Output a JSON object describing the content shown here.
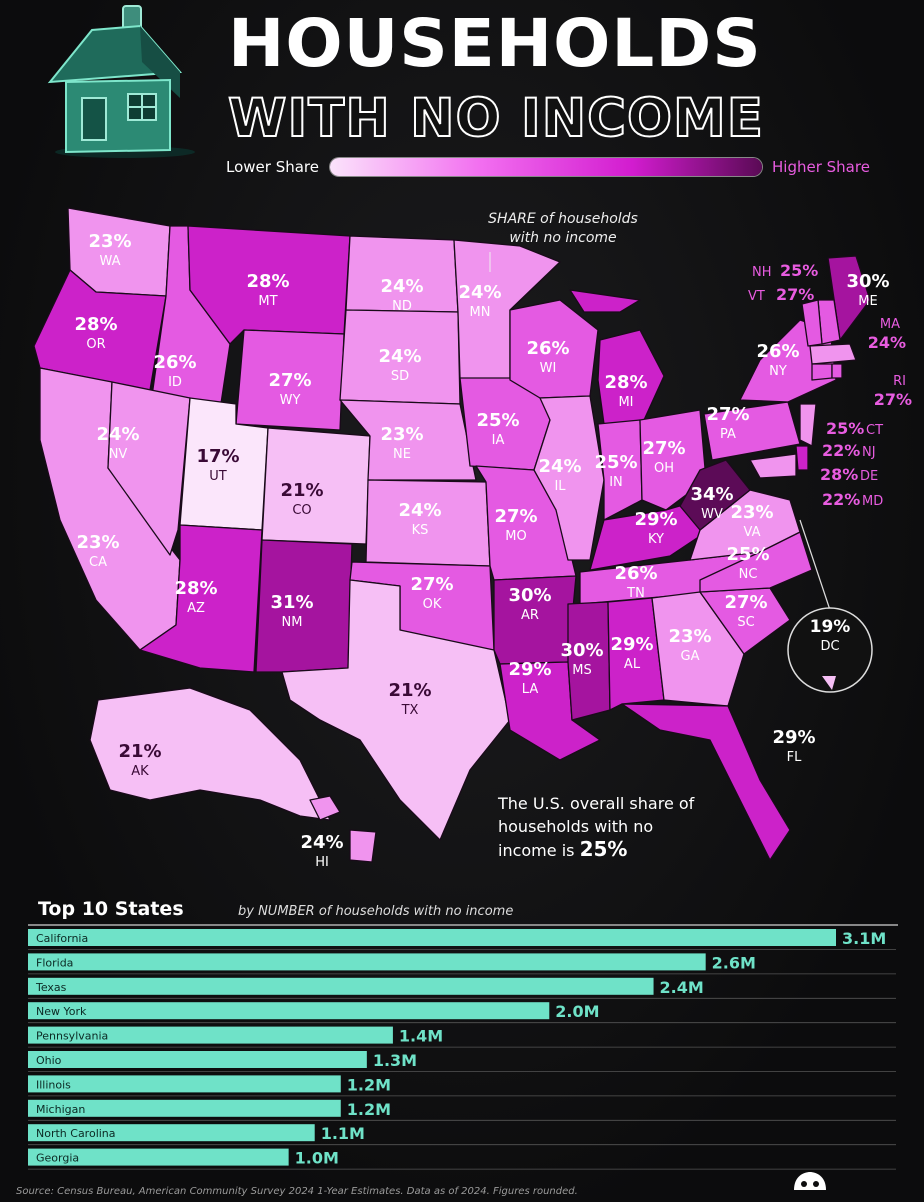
{
  "title": {
    "line1": "HOUSEHOLDS",
    "line2": "WITH NO INCOME"
  },
  "legend": {
    "low": "Lower Share",
    "high": "Higher Share"
  },
  "note": "SHARE of households with no income",
  "overall": {
    "text": "The U.S. overall share of households with no income is",
    "value": "25%"
  },
  "colors": {
    "c17": "#fbe6fb",
    "c19_21": "#f6bff5",
    "c22_24": "#f094ee",
    "c25_27": "#e45ae2",
    "c28_29": "#cc22c9",
    "c30_31": "#a5149f",
    "c34": "#5c0b57",
    "bar": "#6fe2c8"
  },
  "chart_data": [
    {
      "type": "map",
      "title": "HOUSEHOLDS WITH NO INCOME",
      "states": [
        {
          "abbr": "WA",
          "pct": "23%",
          "value": 23
        },
        {
          "abbr": "OR",
          "pct": "28%",
          "value": 28
        },
        {
          "abbr": "CA",
          "pct": "23%",
          "value": 23
        },
        {
          "abbr": "ID",
          "pct": "26%",
          "value": 26
        },
        {
          "abbr": "NV",
          "pct": "24%",
          "value": 24
        },
        {
          "abbr": "MT",
          "pct": "28%",
          "value": 28
        },
        {
          "abbr": "WY",
          "pct": "27%",
          "value": 27
        },
        {
          "abbr": "UT",
          "pct": "17%",
          "value": 17
        },
        {
          "abbr": "CO",
          "pct": "21%",
          "value": 21
        },
        {
          "abbr": "AZ",
          "pct": "28%",
          "value": 28
        },
        {
          "abbr": "NM",
          "pct": "31%",
          "value": 31
        },
        {
          "abbr": "ND",
          "pct": "24%",
          "value": 24
        },
        {
          "abbr": "SD",
          "pct": "24%",
          "value": 24
        },
        {
          "abbr": "NE",
          "pct": "23%",
          "value": 23
        },
        {
          "abbr": "KS",
          "pct": "24%",
          "value": 24
        },
        {
          "abbr": "OK",
          "pct": "27%",
          "value": 27
        },
        {
          "abbr": "TX",
          "pct": "21%",
          "value": 21
        },
        {
          "abbr": "MN",
          "pct": "24%",
          "value": 24
        },
        {
          "abbr": "IA",
          "pct": "25%",
          "value": 25
        },
        {
          "abbr": "MO",
          "pct": "27%",
          "value": 27
        },
        {
          "abbr": "AR",
          "pct": "30%",
          "value": 30
        },
        {
          "abbr": "LA",
          "pct": "29%",
          "value": 29
        },
        {
          "abbr": "WI",
          "pct": "26%",
          "value": 26
        },
        {
          "abbr": "IL",
          "pct": "24%",
          "value": 24
        },
        {
          "abbr": "MI",
          "pct": "28%",
          "value": 28
        },
        {
          "abbr": "IN",
          "pct": "25%",
          "value": 25
        },
        {
          "abbr": "OH",
          "pct": "27%",
          "value": 27
        },
        {
          "abbr": "KY",
          "pct": "29%",
          "value": 29
        },
        {
          "abbr": "TN",
          "pct": "26%",
          "value": 26
        },
        {
          "abbr": "MS",
          "pct": "30%",
          "value": 30
        },
        {
          "abbr": "AL",
          "pct": "29%",
          "value": 29
        },
        {
          "abbr": "GA",
          "pct": "23%",
          "value": 23
        },
        {
          "abbr": "FL",
          "pct": "29%",
          "value": 29
        },
        {
          "abbr": "SC",
          "pct": "27%",
          "value": 27
        },
        {
          "abbr": "NC",
          "pct": "25%",
          "value": 25
        },
        {
          "abbr": "VA",
          "pct": "23%",
          "value": 23
        },
        {
          "abbr": "WV",
          "pct": "34%",
          "value": 34
        },
        {
          "abbr": "PA",
          "pct": "27%",
          "value": 27
        },
        {
          "abbr": "NY",
          "pct": "26%",
          "value": 26
        },
        {
          "abbr": "ME",
          "pct": "30%",
          "value": 30
        },
        {
          "abbr": "NH",
          "pct": "25%",
          "value": 25
        },
        {
          "abbr": "VT",
          "pct": "27%",
          "value": 27
        },
        {
          "abbr": "MA",
          "pct": "24%",
          "value": 24
        },
        {
          "abbr": "RI",
          "pct": "27%",
          "value": 27
        },
        {
          "abbr": "CT",
          "pct": "25%",
          "value": 25
        },
        {
          "abbr": "NJ",
          "pct": "22%",
          "value": 22
        },
        {
          "abbr": "DE",
          "pct": "28%",
          "value": 28
        },
        {
          "abbr": "MD",
          "pct": "22%",
          "value": 22
        },
        {
          "abbr": "DC",
          "pct": "19%",
          "value": 19
        },
        {
          "abbr": "AK",
          "pct": "21%",
          "value": 21
        },
        {
          "abbr": "HI",
          "pct": "24%",
          "value": 24
        }
      ]
    },
    {
      "type": "bar",
      "title": "Top 10 States",
      "subtitle": "by NUMBER of households with no income",
      "categories": [
        "California",
        "Florida",
        "Texas",
        "New York",
        "Pennsylvania",
        "Ohio",
        "Illinois",
        "Michigan",
        "North Carolina",
        "Georgia"
      ],
      "values": [
        3.1,
        2.6,
        2.4,
        2.0,
        1.4,
        1.3,
        1.2,
        1.2,
        1.1,
        1.0
      ],
      "labels": [
        "3.1M",
        "2.6M",
        "2.4M",
        "2.0M",
        "1.4M",
        "1.3M",
        "1.2M",
        "1.2M",
        "1.1M",
        "1.0M"
      ]
    }
  ],
  "source": "Source: Census Bureau, American Community Survey 2024 1-Year Estimates. Data as of 2024. Figures rounded.",
  "logo": "VISUAL CAPITALIST"
}
